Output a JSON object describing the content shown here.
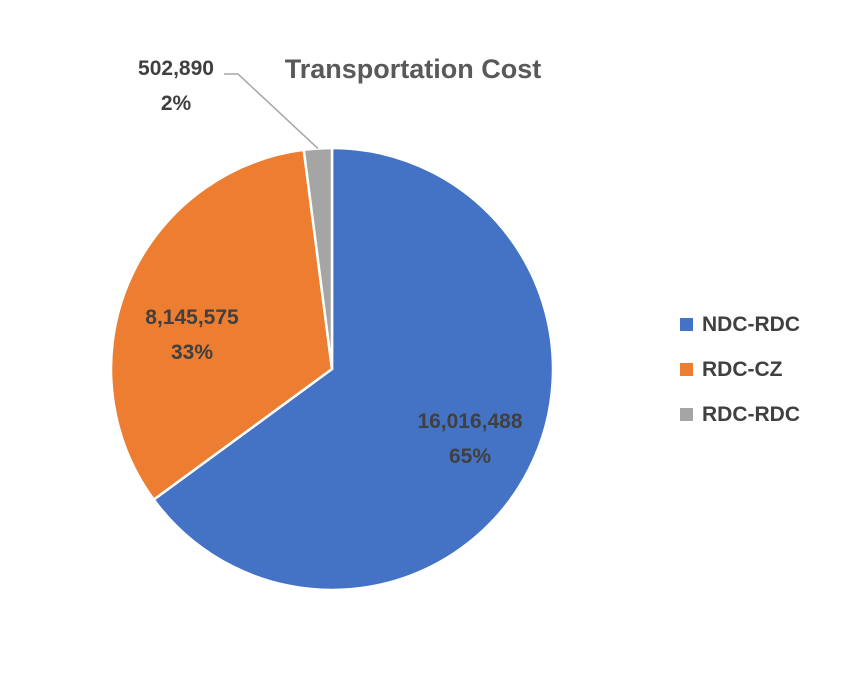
{
  "chart_data": {
    "type": "pie",
    "title": "Transportation Cost",
    "categories": [
      "NDC-RDC",
      "RDC-CZ",
      "RDC-RDC"
    ],
    "values": [
      16016488,
      8145575,
      502890
    ],
    "value_labels": [
      "16,016,488",
      "8,145,575",
      "502,890"
    ],
    "percent_labels": [
      "65%",
      "33%",
      "2%"
    ],
    "colors": [
      "#4472c4",
      "#ed7d31",
      "#a5a5a5"
    ],
    "legend": {
      "position": "right",
      "entries": [
        "NDC-RDC",
        "RDC-CZ",
        "RDC-RDC"
      ]
    }
  }
}
